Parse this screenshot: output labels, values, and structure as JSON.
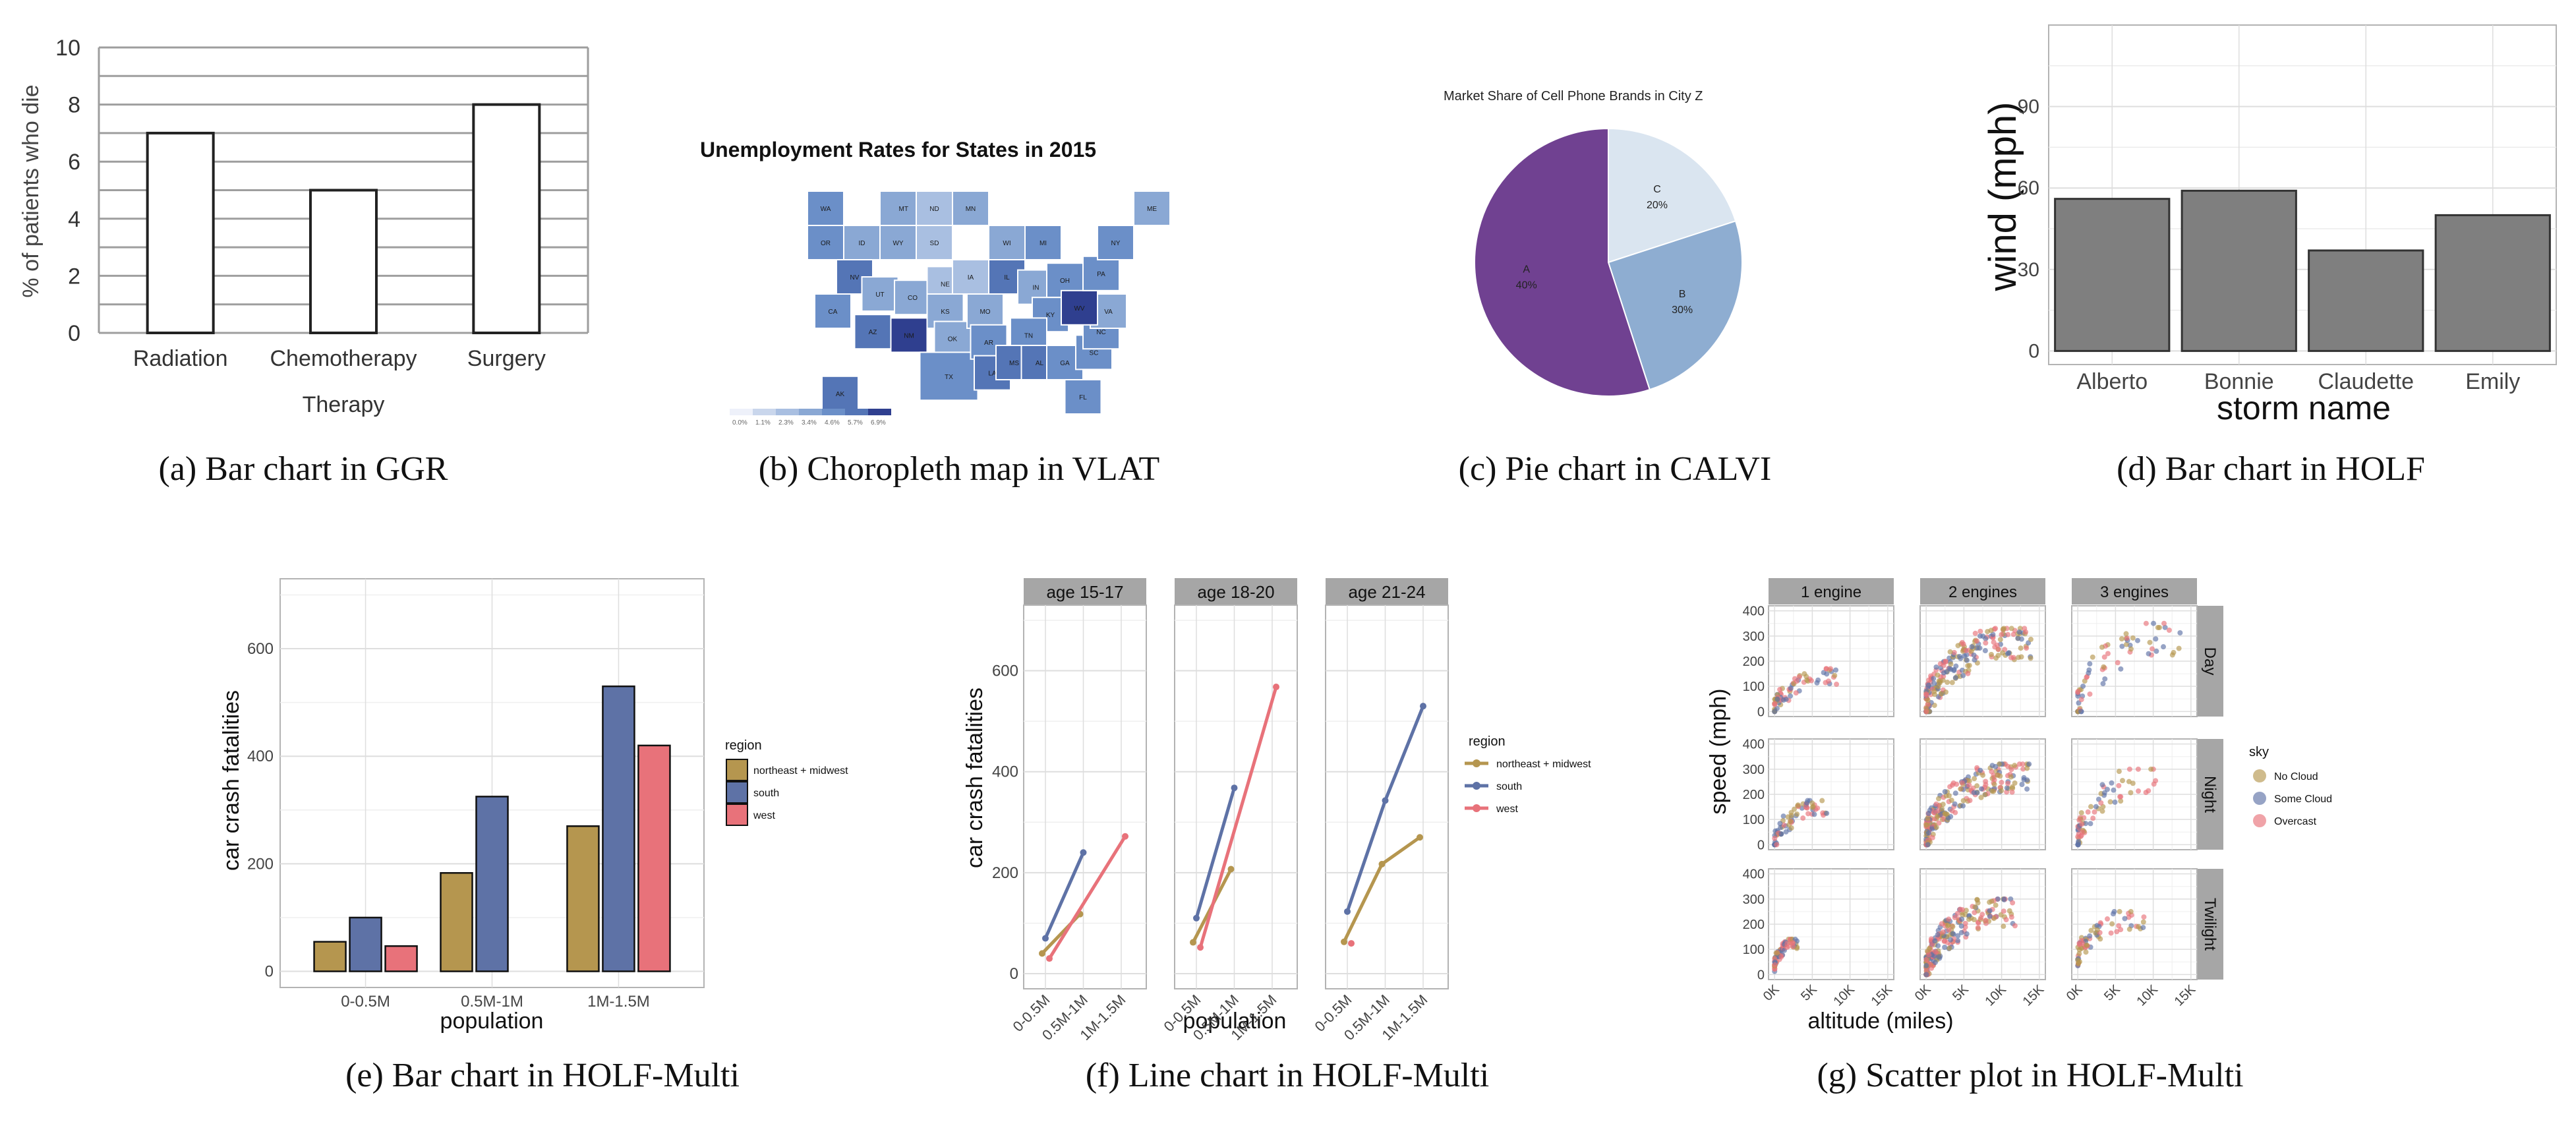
{
  "figure": {
    "captions": [
      "(a) Bar chart in GGR",
      "(b) Choropleth map in VLAT",
      "(c) Pie chart in CALVI",
      "(d) Bar chart in HOLF",
      "(e) Bar chart in HOLF-Multi",
      "(f) Line chart in HOLF-Multi",
      "(g) Scatter plot in HOLF-Multi"
    ]
  },
  "chart_data": [
    {
      "id": "a",
      "type": "bar",
      "title": "",
      "categories": [
        "Radiation",
        "Chemotherapy",
        "Surgery"
      ],
      "values": [
        7,
        5,
        8
      ],
      "xlabel": "Therapy",
      "ylabel": "% of patients who die",
      "ylim": [
        0,
        10
      ],
      "yticks": [
        0,
        2,
        4,
        6,
        8,
        10
      ],
      "grid": "horizontal every 1",
      "colors": {
        "bar_fill": "#ffffff",
        "bar_stroke": "#222222",
        "grid": "#9a9a9a"
      }
    },
    {
      "id": "b",
      "type": "heatmap",
      "subtype": "choropleth",
      "title": "Unemployment Rates for States in 2015",
      "legend": {
        "placement": "bottom-left",
        "labels": [
          "0.0%",
          "1.1%",
          "2.3%",
          "3.4%",
          "4.6%",
          "5.7%",
          "6.9%"
        ],
        "colors": [
          "#eef1fa",
          "#c9d6ec",
          "#a9bfe1",
          "#8aa8d4",
          "#6b8fc8",
          "#5475b6",
          "#2f3f8f"
        ]
      },
      "states": [
        {
          "code": "WA",
          "bin": 4
        },
        {
          "code": "OR",
          "bin": 4
        },
        {
          "code": "CA",
          "bin": 4
        },
        {
          "code": "NV",
          "bin": 5
        },
        {
          "code": "ID",
          "bin": 3
        },
        {
          "code": "MT",
          "bin": 3
        },
        {
          "code": "WY",
          "bin": 3
        },
        {
          "code": "UT",
          "bin": 3
        },
        {
          "code": "CO",
          "bin": 3
        },
        {
          "code": "AZ",
          "bin": 5
        },
        {
          "code": "NM",
          "bin": 6
        },
        {
          "code": "ND",
          "bin": 2
        },
        {
          "code": "SD",
          "bin": 2
        },
        {
          "code": "NE",
          "bin": 2
        },
        {
          "code": "KS",
          "bin": 3
        },
        {
          "code": "OK",
          "bin": 3
        },
        {
          "code": "TX",
          "bin": 4
        },
        {
          "code": "MN",
          "bin": 3
        },
        {
          "code": "IA",
          "bin": 2
        },
        {
          "code": "MO",
          "bin": 3
        },
        {
          "code": "AR",
          "bin": 4
        },
        {
          "code": "LA",
          "bin": 5
        },
        {
          "code": "WI",
          "bin": 3
        },
        {
          "code": "IL",
          "bin": 5
        },
        {
          "code": "MI",
          "bin": 4
        },
        {
          "code": "IN",
          "bin": 3
        },
        {
          "code": "OH",
          "bin": 4
        },
        {
          "code": "KY",
          "bin": 4
        },
        {
          "code": "TN",
          "bin": 4
        },
        {
          "code": "MS",
          "bin": 5
        },
        {
          "code": "AL",
          "bin": 5
        },
        {
          "code": "GA",
          "bin": 4
        },
        {
          "code": "FL",
          "bin": 4
        },
        {
          "code": "SC",
          "bin": 4
        },
        {
          "code": "NC",
          "bin": 4
        },
        {
          "code": "VA",
          "bin": 3
        },
        {
          "code": "WV",
          "bin": 6
        },
        {
          "code": "PA",
          "bin": 4
        },
        {
          "code": "NY",
          "bin": 4
        },
        {
          "code": "ME",
          "bin": 3
        },
        {
          "code": "AK",
          "bin": 5
        }
      ]
    },
    {
      "id": "c",
      "type": "pie",
      "title": "Market Share of Cell Phone Brands in City Z",
      "slices": [
        {
          "label": "C",
          "value_label": "20%",
          "share": 20,
          "color": "#dae5f0"
        },
        {
          "label": "B",
          "value_label": "30%",
          "share": 30,
          "color": "#8eadd1"
        },
        {
          "label": "A",
          "value_label": "40%",
          "share": 40,
          "color": "#704191"
        }
      ],
      "note": "Slice A is drawn larger than its 40% label (covers ~55% of the circle)",
      "drawn_shares": [
        20,
        25,
        55
      ]
    },
    {
      "id": "d",
      "type": "bar",
      "title": "",
      "categories": [
        "Alberto",
        "Bonnie",
        "Claudette",
        "Emily"
      ],
      "values": [
        56,
        59,
        37,
        50
      ],
      "xlabel": "storm name",
      "ylabel": "wind (mph)",
      "ylim": [
        -5,
        120
      ],
      "yticks": [
        0,
        30,
        60,
        90
      ],
      "grid": true,
      "colors": {
        "bar_fill": "#7f7f7f",
        "bar_stroke": "#333333"
      }
    },
    {
      "id": "e",
      "type": "bar",
      "subtype": "grouped",
      "categories": [
        "0-0.5M",
        "0.5M-1M",
        "1M-1.5M"
      ],
      "series": [
        {
          "name": "northeast + midwest",
          "color": "#b5964f",
          "values": [
            55,
            183,
            270
          ]
        },
        {
          "name": "south",
          "color": "#5e72a6",
          "values": [
            100,
            325,
            530
          ]
        },
        {
          "name": "west",
          "color": "#e8727a",
          "values": [
            47,
            null,
            420
          ]
        }
      ],
      "xlabel": "population",
      "ylabel": "car crash fatalities",
      "ylim": [
        -30,
        730
      ],
      "yticks": [
        0,
        200,
        400,
        600
      ],
      "legend": {
        "title": "region",
        "placement": "right"
      },
      "grid": true
    },
    {
      "id": "f",
      "type": "line",
      "categories": [
        "0-0.5M",
        "0.5M-1M",
        "1M-1.5M"
      ],
      "facets": [
        {
          "label": "age 15-17",
          "series": [
            {
              "name": "northeast + midwest",
              "values": [
                40,
                118,
                null
              ]
            },
            {
              "name": "south",
              "values": [
                70,
                240,
                null
              ]
            },
            {
              "name": "west",
              "values": [
                30,
                null,
                272
              ]
            }
          ]
        },
        {
          "label": "age 18-20",
          "series": [
            {
              "name": "northeast + midwest",
              "values": [
                62,
                207,
                null
              ]
            },
            {
              "name": "south",
              "values": [
                110,
                368,
                null
              ]
            },
            {
              "name": "west",
              "values": [
                52,
                null,
                568
              ]
            }
          ]
        },
        {
          "label": "age 21-24",
          "series": [
            {
              "name": "northeast + midwest",
              "values": [
                63,
                217,
                270
              ]
            },
            {
              "name": "south",
              "values": [
                123,
                343,
                530
              ]
            },
            {
              "name": "west",
              "values": [
                60,
                null,
                null
              ]
            }
          ]
        }
      ],
      "series_colors": {
        "northeast + midwest": "#b5964f",
        "south": "#5e72a6",
        "west": "#e8727a"
      },
      "xlabel": "population",
      "ylabel": "car crash fatalities",
      "ylim": [
        -30,
        730
      ],
      "yticks": [
        0,
        200,
        400,
        600
      ],
      "legend": {
        "title": "region",
        "placement": "right",
        "entries": [
          "northeast + midwest",
          "south",
          "west"
        ]
      },
      "grid": true
    },
    {
      "id": "g",
      "type": "scatter",
      "col_facets": [
        "1 engine",
        "2 engines",
        "3 engines"
      ],
      "row_facets": [
        "Day",
        "Night",
        "Twilight"
      ],
      "xlabel": "altitude (miles)",
      "ylabel": "speed (mph)",
      "xticks": [
        "0K",
        "5K",
        "10K",
        "15K"
      ],
      "xlim": [
        -800,
        15800
      ],
      "yticks": [
        0,
        100,
        200,
        300,
        400
      ],
      "ylim": [
        -20,
        420
      ],
      "legend": {
        "title": "sky",
        "placement": "right",
        "entries": [
          {
            "name": "No Cloud",
            "color": "#b5964f"
          },
          {
            "name": "Some Cloud",
            "color": "#5e72a6"
          },
          {
            "name": "Overcast",
            "color": "#e8727a"
          }
        ]
      },
      "cluster_summary": [
        {
          "row": "Day",
          "col": "1 engine",
          "x_range_k": [
            0,
            9
          ],
          "y_range": [
            0,
            170
          ]
        },
        {
          "row": "Day",
          "col": "2 engines",
          "x_range_k": [
            0,
            14
          ],
          "y_range": [
            0,
            330
          ]
        },
        {
          "row": "Day",
          "col": "3 engines",
          "x_range_k": [
            0,
            14
          ],
          "y_range": [
            0,
            350
          ]
        },
        {
          "row": "Night",
          "col": "1 engine",
          "x_range_k": [
            0,
            7
          ],
          "y_range": [
            0,
            175
          ]
        },
        {
          "row": "Night",
          "col": "2 engines",
          "x_range_k": [
            0,
            14
          ],
          "y_range": [
            15,
            320
          ]
        },
        {
          "row": "Night",
          "col": "3 engines",
          "x_range_k": [
            0,
            11
          ],
          "y_range": [
            20,
            300
          ]
        },
        {
          "row": "Twilight",
          "col": "1 engine",
          "x_range_k": [
            0,
            3
          ],
          "y_range": [
            30,
            140
          ]
        },
        {
          "row": "Twilight",
          "col": "2 engines",
          "x_range_k": [
            0,
            12
          ],
          "y_range": [
            10,
            300
          ]
        },
        {
          "row": "Twilight",
          "col": "3 engines",
          "x_range_k": [
            0,
            9
          ],
          "y_range": [
            60,
            250
          ]
        }
      ]
    }
  ]
}
